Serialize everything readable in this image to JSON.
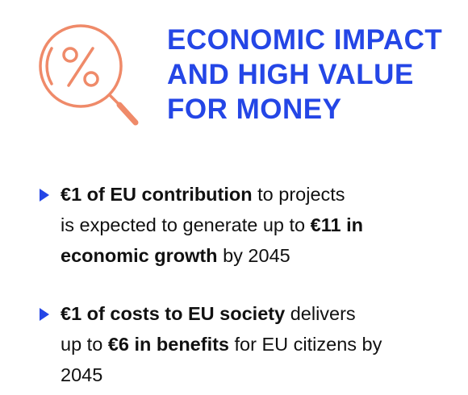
{
  "title": {
    "lines": [
      "ECONOMIC IMPACT",
      "AND HIGH VALUE",
      "FOR MONEY"
    ]
  },
  "bullets": [
    {
      "lines": [
        [
          {
            "text": "€1 of EU contribution",
            "bold": true
          },
          {
            "text": "to projects",
            "bold": false
          }
        ],
        [
          {
            "text": "is expected to generate up to",
            "bold": false
          },
          {
            "text": "€11 in",
            "bold": true
          }
        ],
        [
          {
            "text": "economic growth",
            "bold": true
          },
          {
            "text": "by 2045",
            "bold": false
          }
        ]
      ]
    },
    {
      "lines": [
        [
          {
            "text": "€1 of costs to EU society",
            "bold": true
          },
          {
            "text": "delivers",
            "bold": false
          }
        ],
        [
          {
            "text": "up to",
            "bold": false
          },
          {
            "text": "€6 in benefits",
            "bold": true
          },
          {
            "text": "for EU citizens by",
            "bold": false
          }
        ],
        [
          {
            "text": "2045",
            "bold": false
          }
        ]
      ]
    }
  ]
}
